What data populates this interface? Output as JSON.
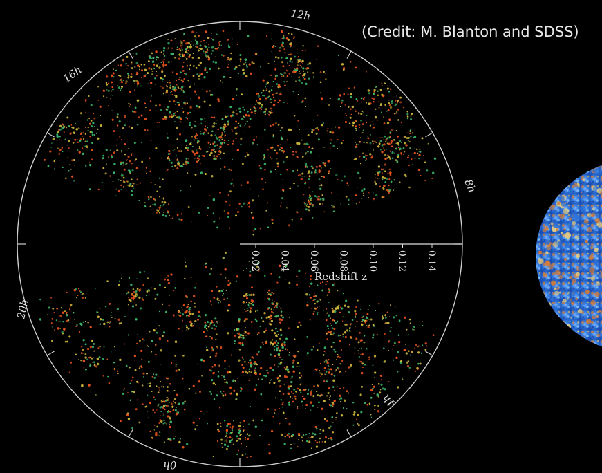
{
  "credit": "(Credit: M. Blanton and SDSS)",
  "hour_labels": {
    "h12": "12h",
    "h16": "16h",
    "h8": "8h",
    "h20": "20h",
    "h4": "4h",
    "h0": "0h"
  },
  "axis": {
    "title": "Redshift z",
    "ticks": [
      "0.02",
      "0.04",
      "0.06",
      "0.08",
      "0.10",
      "0.12",
      "0.14"
    ]
  },
  "colors": {
    "background": "#000000",
    "ring": "#cfcfcf",
    "galaxy_hot": "#e2501d",
    "galaxy_mid": "#c7b23a",
    "galaxy_cool": "#39b26b",
    "cmb_blue": "#2a6fd6",
    "cmb_orange": "#e07b2a"
  }
}
